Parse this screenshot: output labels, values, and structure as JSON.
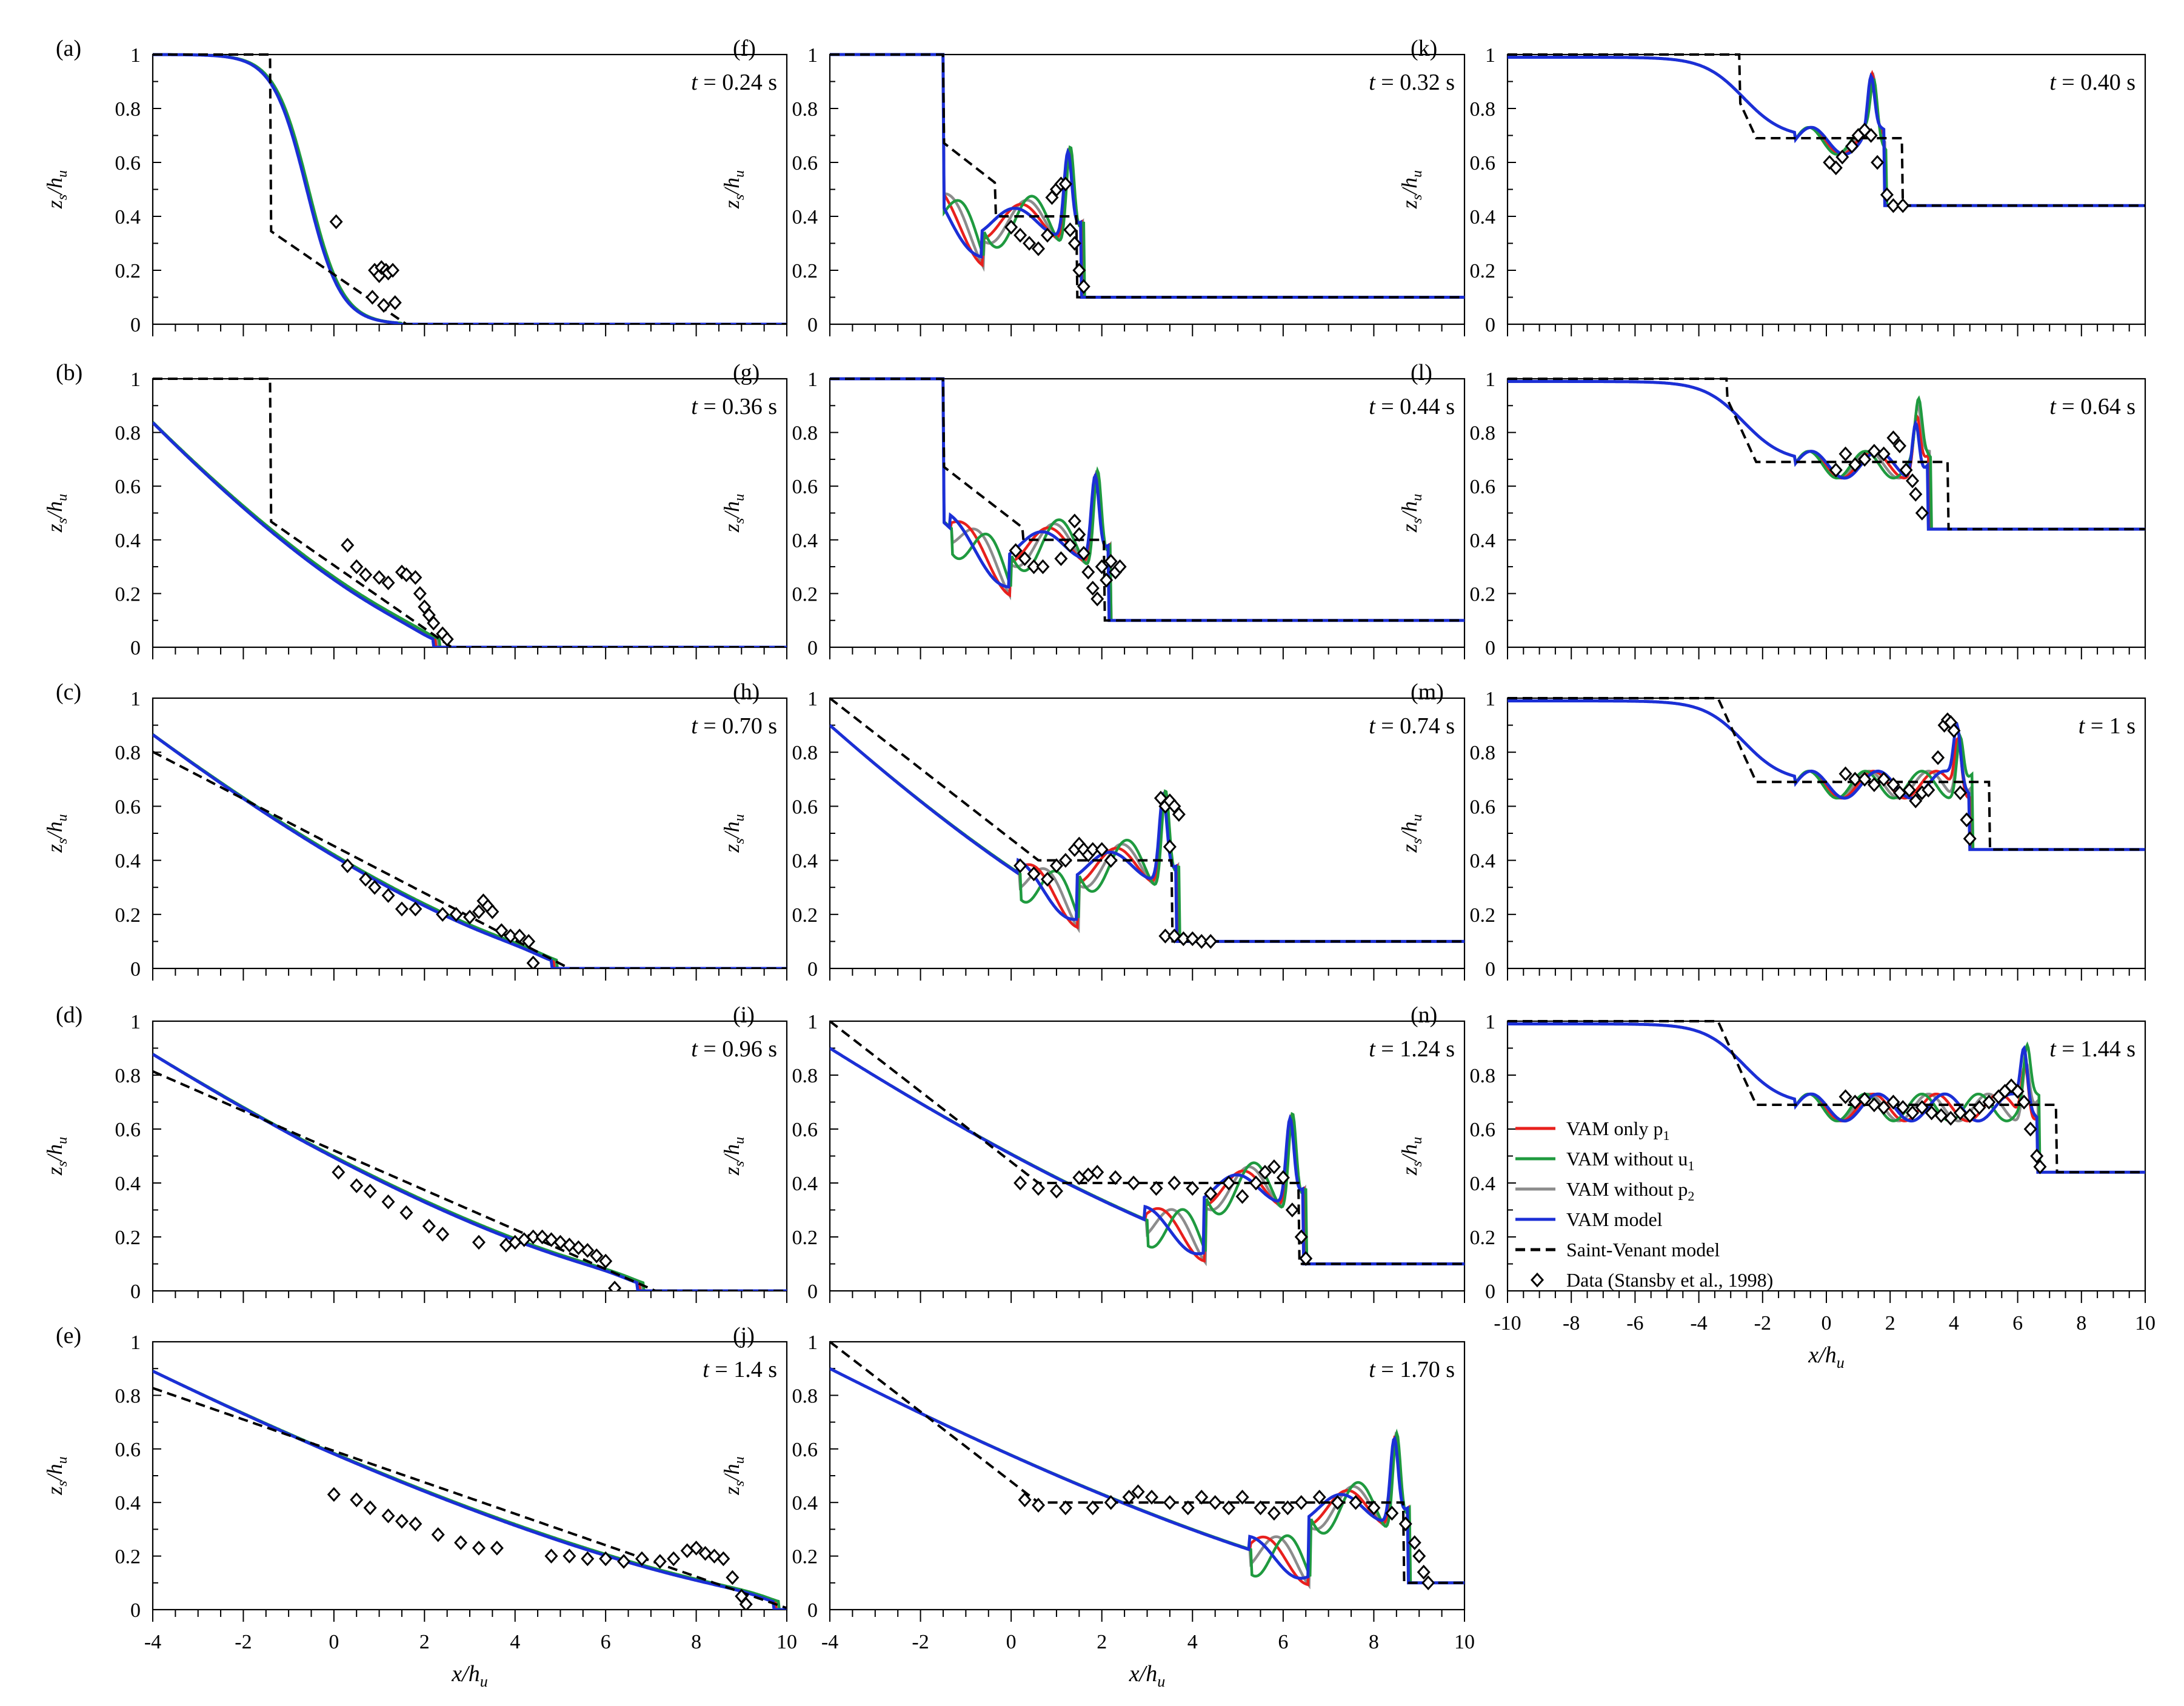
{
  "figure": {
    "y_axis_label_main": "z",
    "y_axis_label_sub": "s",
    "y_axis_label_den_main": "h",
    "y_axis_label_den_sub": "u",
    "x_axis_label_main": "x/h",
    "x_axis_label_sub": "u",
    "time_prefix": "t",
    "legend": [
      {
        "key": "vam_only_p1",
        "label": "VAM only p",
        "sub": "1",
        "color": "#e8201d",
        "style": "line"
      },
      {
        "key": "vam_without_u1",
        "label": "VAM without u",
        "sub": "1",
        "color": "#1f9a3f",
        "style": "line"
      },
      {
        "key": "vam_without_p2",
        "label": "VAM without p",
        "sub": "2",
        "color": "#8c8c8c",
        "style": "line"
      },
      {
        "key": "vam_model",
        "label": "VAM model",
        "sub": "",
        "color": "#1b2fd6",
        "style": "line"
      },
      {
        "key": "saint_venant",
        "label": "Saint-Venant model",
        "sub": "",
        "color": "#000000",
        "style": "dashed"
      },
      {
        "key": "data",
        "label": "Data (Stansby et al., 1998)",
        "sub": "",
        "color": "#000000",
        "style": "marker"
      }
    ]
  },
  "chart_data": [
    {
      "type": "line",
      "panel": "(a)",
      "time": "= 0.24 s",
      "hd": 0.0,
      "front": 1.2,
      "ylim": [
        0,
        1
      ],
      "xlim": [
        -4,
        10
      ],
      "yticks": [
        "0",
        "0.2",
        "0.4",
        "0.6",
        "0.8",
        "1"
      ],
      "xticks": [
        "-4",
        "-2",
        "0",
        "2",
        "4",
        "6",
        "8",
        "10"
      ],
      "data_points": [
        [
          0.05,
          0.38
        ],
        [
          0.85,
          0.1
        ],
        [
          0.9,
          0.2
        ],
        [
          1.0,
          0.18
        ],
        [
          1.05,
          0.21
        ],
        [
          1.1,
          0.07
        ],
        [
          1.15,
          0.2
        ],
        [
          1.2,
          0.19
        ],
        [
          1.3,
          0.2
        ],
        [
          1.35,
          0.08
        ]
      ]
    },
    {
      "type": "line",
      "panel": "(b)",
      "time": "= 0.36 s",
      "hd": 0.0,
      "front": 2.2,
      "ylim": [
        0,
        1
      ],
      "xlim": [
        -4,
        10
      ],
      "data_points": [
        [
          0.3,
          0.38
        ],
        [
          0.5,
          0.3
        ],
        [
          0.7,
          0.27
        ],
        [
          1.0,
          0.26
        ],
        [
          1.2,
          0.24
        ],
        [
          1.5,
          0.28
        ],
        [
          1.6,
          0.27
        ],
        [
          1.8,
          0.26
        ],
        [
          1.9,
          0.2
        ],
        [
          2.0,
          0.15
        ],
        [
          2.1,
          0.12
        ],
        [
          2.2,
          0.09
        ],
        [
          2.4,
          0.05
        ],
        [
          2.5,
          0.03
        ]
      ]
    },
    {
      "type": "line",
      "panel": "(c)",
      "time": "= 0.70 s",
      "hd": 0.0,
      "front": 4.8,
      "ylim": [
        0,
        1
      ],
      "xlim": [
        -4,
        10
      ],
      "data_points": [
        [
          0.3,
          0.38
        ],
        [
          0.7,
          0.33
        ],
        [
          0.9,
          0.3
        ],
        [
          1.2,
          0.27
        ],
        [
          1.5,
          0.22
        ],
        [
          1.8,
          0.22
        ],
        [
          2.4,
          0.2
        ],
        [
          2.7,
          0.2
        ],
        [
          3.0,
          0.19
        ],
        [
          3.2,
          0.21
        ],
        [
          3.3,
          0.25
        ],
        [
          3.4,
          0.23
        ],
        [
          3.5,
          0.21
        ],
        [
          3.7,
          0.14
        ],
        [
          3.9,
          0.12
        ],
        [
          4.1,
          0.12
        ],
        [
          4.3,
          0.1
        ],
        [
          4.4,
          0.02
        ]
      ]
    },
    {
      "type": "line",
      "panel": "(d)",
      "time": "= 0.96 s",
      "hd": 0.0,
      "front": 6.7,
      "ylim": [
        0,
        1
      ],
      "xlim": [
        -4,
        10
      ],
      "data_points": [
        [
          0.1,
          0.44
        ],
        [
          0.5,
          0.39
        ],
        [
          0.8,
          0.37
        ],
        [
          1.2,
          0.33
        ],
        [
          1.6,
          0.29
        ],
        [
          2.1,
          0.24
        ],
        [
          2.4,
          0.21
        ],
        [
          3.2,
          0.18
        ],
        [
          3.8,
          0.17
        ],
        [
          4.0,
          0.18
        ],
        [
          4.2,
          0.19
        ],
        [
          4.4,
          0.2
        ],
        [
          4.6,
          0.2
        ],
        [
          4.8,
          0.19
        ],
        [
          5.0,
          0.18
        ],
        [
          5.2,
          0.17
        ],
        [
          5.4,
          0.16
        ],
        [
          5.6,
          0.15
        ],
        [
          5.8,
          0.13
        ],
        [
          6.0,
          0.11
        ],
        [
          6.2,
          0.01
        ]
      ]
    },
    {
      "type": "line",
      "panel": "(e)",
      "time": "= 1.4 s",
      "hd": 0.0,
      "front": 9.7,
      "ylim": [
        0,
        1
      ],
      "xlim": [
        -4,
        10
      ],
      "data_points": [
        [
          0.0,
          0.43
        ],
        [
          0.5,
          0.41
        ],
        [
          0.8,
          0.38
        ],
        [
          1.2,
          0.35
        ],
        [
          1.5,
          0.33
        ],
        [
          1.8,
          0.32
        ],
        [
          2.3,
          0.28
        ],
        [
          2.8,
          0.25
        ],
        [
          3.2,
          0.23
        ],
        [
          3.6,
          0.23
        ],
        [
          4.8,
          0.2
        ],
        [
          5.2,
          0.2
        ],
        [
          5.6,
          0.19
        ],
        [
          6.0,
          0.19
        ],
        [
          6.4,
          0.18
        ],
        [
          6.8,
          0.19
        ],
        [
          7.2,
          0.18
        ],
        [
          7.5,
          0.19
        ],
        [
          7.8,
          0.22
        ],
        [
          8.0,
          0.23
        ],
        [
          8.2,
          0.21
        ],
        [
          8.4,
          0.2
        ],
        [
          8.6,
          0.19
        ],
        [
          8.8,
          0.12
        ],
        [
          9.0,
          0.05
        ],
        [
          9.1,
          0.02
        ]
      ]
    },
    {
      "type": "line",
      "panel": "(f)",
      "time": "= 0.32 s",
      "hd": 0.1,
      "front": 1.55,
      "ylim": [
        0,
        1
      ],
      "xlim": [
        -4,
        10
      ],
      "data_points": [
        [
          0.0,
          0.36
        ],
        [
          0.2,
          0.33
        ],
        [
          0.4,
          0.3
        ],
        [
          0.6,
          0.28
        ],
        [
          0.8,
          0.33
        ],
        [
          0.9,
          0.47
        ],
        [
          1.0,
          0.5
        ],
        [
          1.1,
          0.52
        ],
        [
          1.2,
          0.52
        ],
        [
          1.3,
          0.35
        ],
        [
          1.4,
          0.3
        ],
        [
          1.5,
          0.2
        ],
        [
          1.6,
          0.14
        ]
      ]
    },
    {
      "type": "line",
      "panel": "(g)",
      "time": "= 0.44 s",
      "hd": 0.1,
      "front": 2.15,
      "ylim": [
        0,
        1
      ],
      "xlim": [
        -4,
        10
      ],
      "data_points": [
        [
          0.1,
          0.36
        ],
        [
          0.3,
          0.33
        ],
        [
          0.5,
          0.3
        ],
        [
          0.7,
          0.3
        ],
        [
          1.1,
          0.33
        ],
        [
          1.3,
          0.38
        ],
        [
          1.4,
          0.47
        ],
        [
          1.5,
          0.42
        ],
        [
          1.6,
          0.35
        ],
        [
          1.7,
          0.28
        ],
        [
          1.8,
          0.22
        ],
        [
          1.9,
          0.18
        ],
        [
          2.0,
          0.3
        ],
        [
          2.1,
          0.25
        ],
        [
          2.2,
          0.32
        ],
        [
          2.3,
          0.28
        ],
        [
          2.4,
          0.3
        ]
      ]
    },
    {
      "type": "line",
      "panel": "(h)",
      "time": "= 0.74 s",
      "hd": 0.1,
      "front": 3.65,
      "ylim": [
        0,
        1
      ],
      "xlim": [
        -4,
        10
      ],
      "data_points": [
        [
          0.2,
          0.38
        ],
        [
          0.5,
          0.35
        ],
        [
          0.8,
          0.33
        ],
        [
          1.0,
          0.38
        ],
        [
          1.2,
          0.4
        ],
        [
          1.4,
          0.44
        ],
        [
          1.5,
          0.46
        ],
        [
          1.6,
          0.44
        ],
        [
          1.7,
          0.42
        ],
        [
          1.8,
          0.44
        ],
        [
          2.0,
          0.44
        ],
        [
          2.2,
          0.4
        ],
        [
          3.3,
          0.63
        ],
        [
          3.4,
          0.6
        ],
        [
          3.5,
          0.62
        ],
        [
          3.6,
          0.6
        ],
        [
          3.7,
          0.57
        ],
        [
          3.5,
          0.45
        ],
        [
          3.4,
          0.12
        ],
        [
          3.6,
          0.12
        ],
        [
          3.8,
          0.11
        ],
        [
          4.0,
          0.11
        ],
        [
          4.2,
          0.1
        ],
        [
          4.4,
          0.1
        ]
      ]
    },
    {
      "type": "line",
      "panel": "(i)",
      "time": "= 1.24 s",
      "hd": 0.1,
      "front": 6.45,
      "ylim": [
        0,
        1
      ],
      "xlim": [
        -4,
        10
      ],
      "data_points": [
        [
          0.2,
          0.4
        ],
        [
          0.6,
          0.38
        ],
        [
          1.0,
          0.37
        ],
        [
          1.5,
          0.42
        ],
        [
          1.7,
          0.43
        ],
        [
          1.9,
          0.44
        ],
        [
          2.3,
          0.42
        ],
        [
          2.7,
          0.4
        ],
        [
          3.2,
          0.38
        ],
        [
          3.6,
          0.4
        ],
        [
          4.0,
          0.38
        ],
        [
          4.4,
          0.36
        ],
        [
          4.8,
          0.4
        ],
        [
          5.1,
          0.35
        ],
        [
          5.4,
          0.4
        ],
        [
          5.6,
          0.44
        ],
        [
          5.8,
          0.46
        ],
        [
          6.0,
          0.42
        ],
        [
          6.2,
          0.3
        ],
        [
          6.4,
          0.2
        ],
        [
          6.5,
          0.12
        ]
      ]
    },
    {
      "type": "line",
      "panel": "(j)",
      "time": "= 1.70 s",
      "hd": 0.1,
      "front": 8.75,
      "ylim": [
        0,
        1
      ],
      "xlim": [
        -4,
        10
      ],
      "data_points": [
        [
          0.3,
          0.41
        ],
        [
          0.6,
          0.39
        ],
        [
          1.2,
          0.38
        ],
        [
          1.8,
          0.38
        ],
        [
          2.2,
          0.4
        ],
        [
          2.6,
          0.42
        ],
        [
          2.8,
          0.44
        ],
        [
          3.1,
          0.42
        ],
        [
          3.5,
          0.4
        ],
        [
          3.9,
          0.38
        ],
        [
          4.2,
          0.42
        ],
        [
          4.5,
          0.4
        ],
        [
          4.8,
          0.38
        ],
        [
          5.1,
          0.42
        ],
        [
          5.5,
          0.38
        ],
        [
          5.8,
          0.36
        ],
        [
          6.1,
          0.38
        ],
        [
          6.4,
          0.4
        ],
        [
          6.8,
          0.42
        ],
        [
          7.2,
          0.4
        ],
        [
          7.6,
          0.4
        ],
        [
          8.0,
          0.38
        ],
        [
          8.4,
          0.36
        ],
        [
          8.7,
          0.32
        ],
        [
          8.9,
          0.25
        ],
        [
          9.0,
          0.2
        ],
        [
          9.1,
          0.14
        ],
        [
          9.2,
          0.1
        ]
      ]
    },
    {
      "type": "line",
      "panel": "(k)",
      "time": "= 0.40 s",
      "hd": 0.44,
      "front": 1.8,
      "ylim": [
        0,
        1
      ],
      "xlim": [
        -10,
        10
      ],
      "data_points": [
        [
          0.1,
          0.6
        ],
        [
          0.3,
          0.58
        ],
        [
          0.5,
          0.62
        ],
        [
          0.8,
          0.66
        ],
        [
          1.0,
          0.7
        ],
        [
          1.2,
          0.72
        ],
        [
          1.4,
          0.7
        ],
        [
          1.6,
          0.6
        ],
        [
          1.9,
          0.48
        ],
        [
          2.1,
          0.44
        ],
        [
          2.4,
          0.44
        ]
      ]
    },
    {
      "type": "line",
      "panel": "(l)",
      "time": "= 0.64 s",
      "hd": 0.44,
      "front": 3.2,
      "ylim": [
        0,
        1
      ],
      "xlim": [
        -10,
        10
      ],
      "data_points": [
        [
          0.3,
          0.66
        ],
        [
          0.6,
          0.72
        ],
        [
          0.9,
          0.68
        ],
        [
          1.2,
          0.7
        ],
        [
          1.5,
          0.73
        ],
        [
          1.8,
          0.72
        ],
        [
          2.1,
          0.78
        ],
        [
          2.3,
          0.75
        ],
        [
          2.5,
          0.66
        ],
        [
          2.7,
          0.62
        ],
        [
          2.8,
          0.57
        ],
        [
          3.0,
          0.5
        ]
      ]
    },
    {
      "type": "line",
      "panel": "(m)",
      "time": "= 1 s",
      "hd": 0.44,
      "front": 4.5,
      "ylim": [
        0,
        1
      ],
      "xlim": [
        -10,
        10
      ],
      "data_points": [
        [
          0.6,
          0.72
        ],
        [
          0.9,
          0.7
        ],
        [
          1.2,
          0.7
        ],
        [
          1.5,
          0.68
        ],
        [
          1.8,
          0.7
        ],
        [
          2.1,
          0.68
        ],
        [
          2.3,
          0.65
        ],
        [
          2.6,
          0.66
        ],
        [
          2.8,
          0.62
        ],
        [
          3.0,
          0.65
        ],
        [
          3.2,
          0.66
        ],
        [
          3.5,
          0.78
        ],
        [
          3.7,
          0.9
        ],
        [
          3.8,
          0.92
        ],
        [
          3.9,
          0.91
        ],
        [
          4.0,
          0.88
        ],
        [
          4.2,
          0.65
        ],
        [
          4.4,
          0.55
        ],
        [
          4.5,
          0.48
        ]
      ]
    },
    {
      "type": "line",
      "panel": "(n)",
      "time": "= 1.44 s",
      "hd": 0.44,
      "front": 6.6,
      "ylim": [
        0,
        1
      ],
      "xlim": [
        -10,
        10
      ],
      "data_points": [
        [
          0.6,
          0.72
        ],
        [
          0.9,
          0.7
        ],
        [
          1.2,
          0.71
        ],
        [
          1.5,
          0.69
        ],
        [
          1.8,
          0.68
        ],
        [
          2.1,
          0.7
        ],
        [
          2.4,
          0.68
        ],
        [
          2.7,
          0.66
        ],
        [
          3.0,
          0.68
        ],
        [
          3.3,
          0.66
        ],
        [
          3.6,
          0.65
        ],
        [
          3.9,
          0.64
        ],
        [
          4.2,
          0.66
        ],
        [
          4.5,
          0.65
        ],
        [
          4.8,
          0.68
        ],
        [
          5.1,
          0.7
        ],
        [
          5.4,
          0.72
        ],
        [
          5.6,
          0.74
        ],
        [
          5.8,
          0.76
        ],
        [
          6.0,
          0.74
        ],
        [
          6.2,
          0.7
        ],
        [
          6.4,
          0.6
        ],
        [
          6.6,
          0.5
        ],
        [
          6.7,
          0.46
        ]
      ]
    }
  ]
}
